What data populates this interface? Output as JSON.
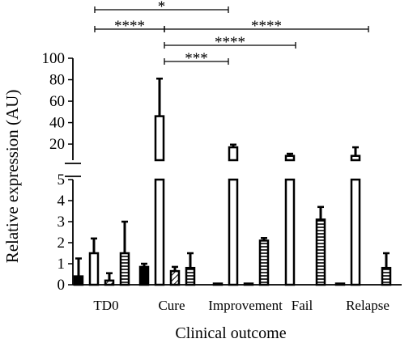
{
  "chart_data": {
    "type": "bar",
    "title": "",
    "xlabel": "Clinical outcome",
    "ylabel": "Relative expression (AU)",
    "categories": [
      "TD0",
      "Cure",
      "Improvement",
      "Fail",
      "Relapse"
    ],
    "axis": {
      "broken": true,
      "lower_ylim": [
        0,
        5
      ],
      "lower_ticks": [
        "0",
        "1",
        "2",
        "3",
        "4",
        "5"
      ],
      "upper_ylim": [
        5,
        100
      ],
      "upper_ticks": [
        "20",
        "40",
        "60",
        "80",
        "100"
      ]
    },
    "series": [
      {
        "pattern": "solid",
        "values": [
          0.4,
          0.85,
          0.03,
          null,
          0.03
        ],
        "errors": [
          0.85,
          0.15,
          0.0,
          null,
          0.0
        ]
      },
      {
        "pattern": "open",
        "values": [
          1.5,
          46,
          17,
          9,
          9
        ],
        "errors": [
          0.7,
          35,
          2.5,
          2,
          8
        ]
      },
      {
        "pattern": "diagonal",
        "values": [
          0.2,
          0.65,
          0.03,
          null,
          null
        ],
        "errors": [
          0.35,
          0.2,
          0.0,
          null,
          null
        ]
      },
      {
        "pattern": "horizontal",
        "values": [
          1.5,
          0.8,
          2.1,
          3.1,
          0.8
        ],
        "errors": [
          1.5,
          0.7,
          0.12,
          0.6,
          0.7
        ]
      }
    ],
    "significance": [
      {
        "from": "TD0",
        "to": "Improvement",
        "label": "*"
      },
      {
        "from": "TD0",
        "to": "Cure",
        "label": "****"
      },
      {
        "from": "Cure",
        "to": "Relapse",
        "label": "****"
      },
      {
        "from": "Cure",
        "to": "Fail",
        "label": "****"
      },
      {
        "from": "Cure",
        "to": "Improvement",
        "label": "***"
      }
    ]
  }
}
